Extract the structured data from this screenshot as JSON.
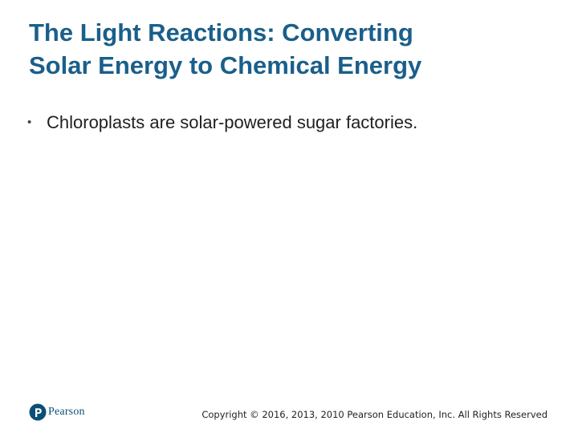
{
  "slide": {
    "title_lines": [
      "The Light Reactions: Converting",
      "Solar Energy to Chemical Energy"
    ],
    "bullets": [
      "Chloroplasts are solar-powered sugar factories."
    ],
    "bullet_glyph": "•"
  },
  "footer": {
    "logo_text": "Pearson",
    "logo_color": "#0b4f78",
    "copyright": "Copyright © 2016, 2013, 2010 Pearson Education, Inc. All Rights Reserved"
  },
  "colors": {
    "title": "#1a5f8a",
    "body_text": "#1f1f1f",
    "background": "#ffffff"
  }
}
